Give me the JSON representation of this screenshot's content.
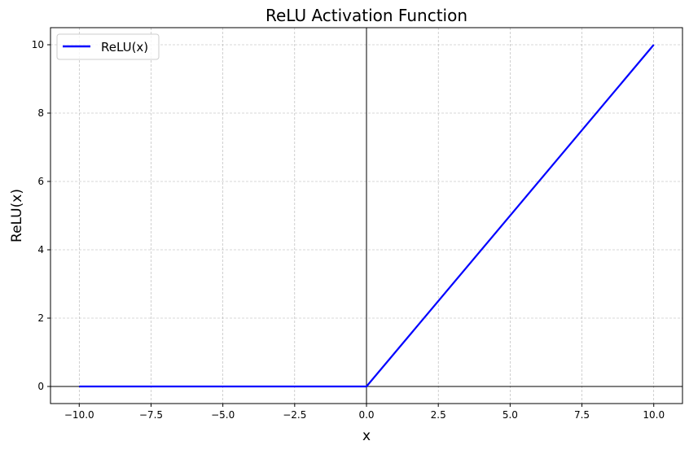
{
  "chart_data": {
    "type": "line",
    "title": "ReLU Activation Function",
    "xlabel": "x",
    "ylabel": "ReLU(x)",
    "xlim": [
      -11,
      11
    ],
    "ylim": [
      -0.5,
      10.5
    ],
    "xticks": [
      -10.0,
      -7.5,
      -5.0,
      -2.5,
      0.0,
      2.5,
      5.0,
      7.5,
      10.0
    ],
    "xtick_labels": [
      "−10.0",
      "−7.5",
      "−5.0",
      "−2.5",
      "0.0",
      "2.5",
      "5.0",
      "7.5",
      "10.0"
    ],
    "yticks": [
      0,
      2,
      4,
      6,
      8,
      10
    ],
    "ytick_labels": [
      "0",
      "2",
      "4",
      "6",
      "8",
      "10"
    ],
    "grid": true,
    "reference_lines": {
      "x": 0,
      "y": 0,
      "color": "#000000"
    },
    "legend": {
      "placement": "top-left",
      "entries": [
        "ReLU(x)"
      ]
    },
    "series": [
      {
        "name": "ReLU(x)",
        "color": "#0000ff",
        "x": [
          -10,
          0,
          10
        ],
        "y": [
          0,
          0,
          10
        ]
      }
    ]
  }
}
